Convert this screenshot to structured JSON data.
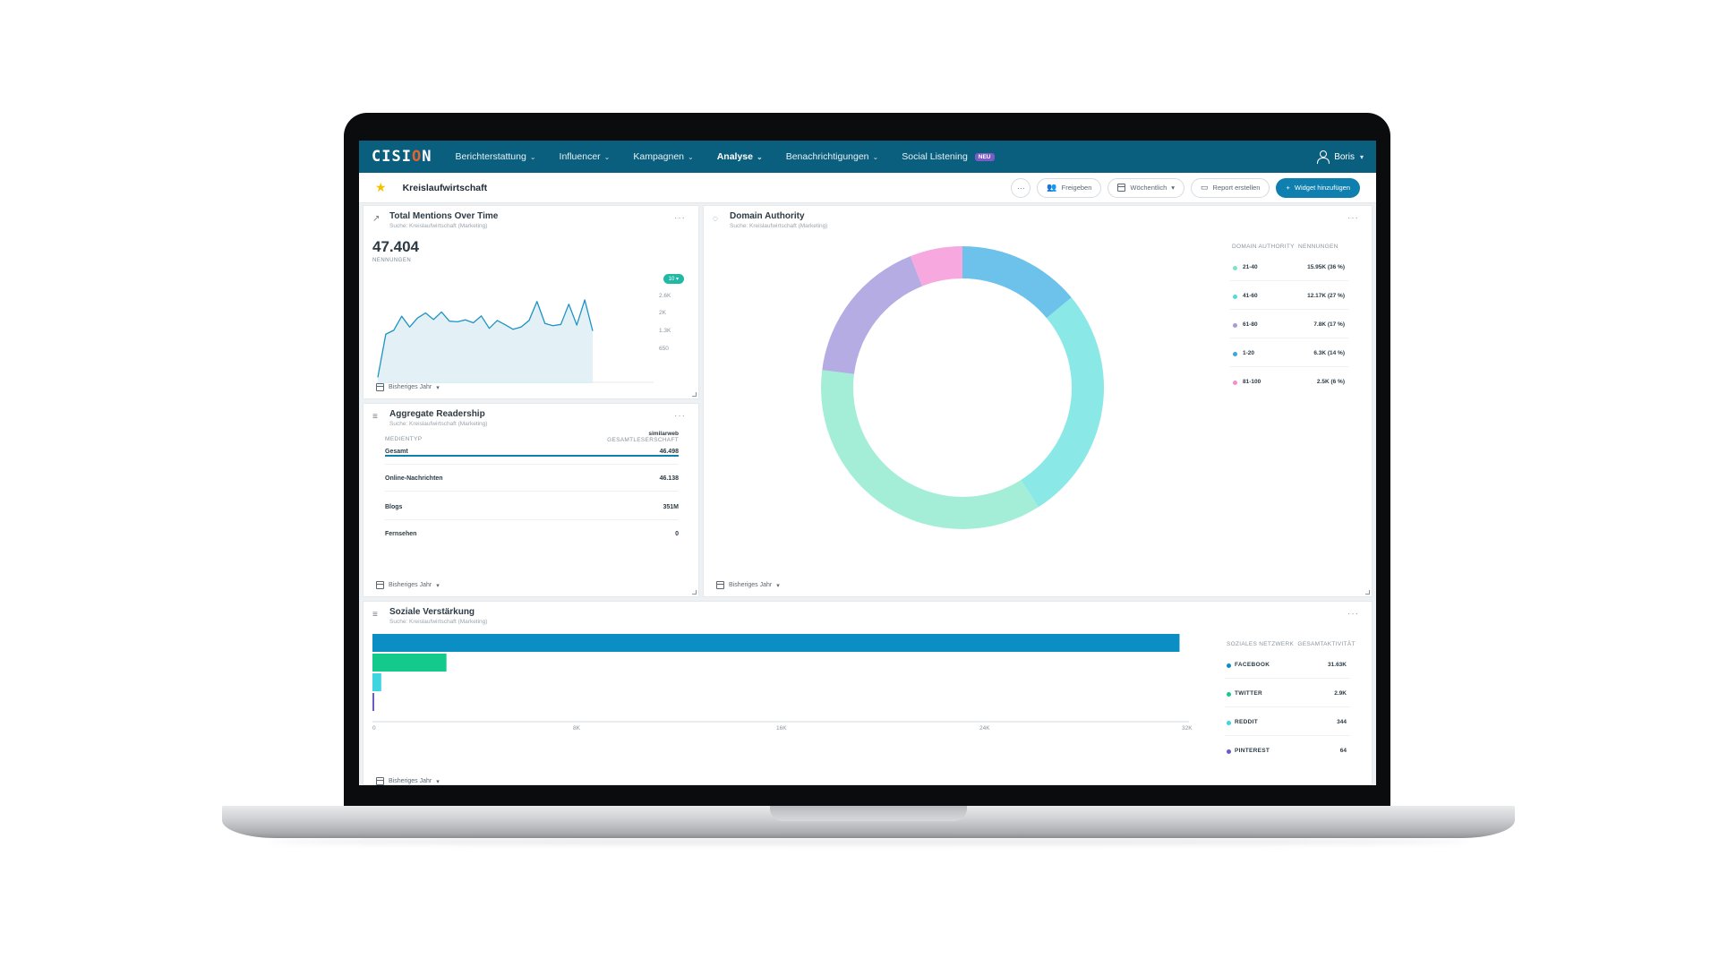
{
  "nav": {
    "logo_pre": "CISI",
    "logo_o": "O",
    "logo_post": "N",
    "items": [
      {
        "label": "Berichterstattung"
      },
      {
        "label": "Influencer"
      },
      {
        "label": "Kampagnen"
      },
      {
        "label": "Analyse"
      },
      {
        "label": "Benachrichtigungen"
      },
      {
        "label": "Social Listening"
      }
    ],
    "new_badge": "NEU",
    "user": "Boris"
  },
  "subheader": {
    "title": "Kreislaufwirtschaft",
    "more_label": "···",
    "share_label": "Freigeben",
    "period_label": "Wöchentlich",
    "report_label": "Report erstellen",
    "add_widget_label": "Widget hinzufügen"
  },
  "mentions": {
    "title": "Total Mentions Over Time",
    "subtitle": "Suche: Kreislaufwirtschaft (Marketing)",
    "total": "47.404",
    "total_label": "NENNUNGEN",
    "tag": "10 ▾",
    "y_ticks": [
      "2.6K",
      "2K",
      "1.3K",
      "650"
    ],
    "footer": "Bisheriges Jahr",
    "series": [
      180,
      1500,
      1620,
      2050,
      1720,
      2000,
      2150,
      1950,
      2180,
      1900,
      1880,
      1940,
      1850,
      2060,
      1680,
      1920,
      1790,
      1650,
      1720,
      1920,
      2500,
      1830,
      1760,
      1800,
      2420,
      1780,
      2550,
      1600
    ]
  },
  "readership": {
    "title": "Aggregate Readership",
    "subtitle": "Suche: Kreislaufwirtschaft (Marketing)",
    "col_label": "MEDIENTYP",
    "provider": "similarweb",
    "provider_sub": "GESAMTLESERSCHAFT",
    "rows": [
      {
        "label": "Gesamt",
        "value": "46.498"
      },
      {
        "label": "Online-Nachrichten",
        "value": "46.138"
      },
      {
        "label": "Blogs",
        "value": "351M"
      },
      {
        "label": "Fernsehen",
        "value": "0"
      }
    ],
    "total_fill": 1.0,
    "footer": "Bisheriges Jahr"
  },
  "domain": {
    "title": "Domain Authority",
    "subtitle": "Suche: Kreislaufwirtschaft (Marketing)",
    "col_a": "DOMAIN AUTHORITY",
    "col_b": "NENNUNGEN",
    "footer": "Bisheriges Jahr",
    "legend": [
      {
        "label": "21-40",
        "value": "15.95K (36 %)",
        "color": "#7de3c8"
      },
      {
        "label": "41-60",
        "value": "12.17K (27 %)",
        "color": "#5ad7d9"
      },
      {
        "label": "61-80",
        "value": "7.8K (17 %)",
        "color": "#a89bd9"
      },
      {
        "label": "1-20",
        "value": "6.3K (14 %)",
        "color": "#3aa8e0"
      },
      {
        "label": "81-100",
        "value": "2.5K (6 %)",
        "color": "#f28ed0"
      }
    ]
  },
  "social": {
    "title": "Soziale Verstärkung",
    "subtitle": "Suche: Kreislaufwirtschaft (Marketing)",
    "col_a": "SOZIALES NETZWERK",
    "col_b": "GESAMTAKTIVITÄT",
    "footer": "Bisheriges Jahr",
    "x_ticks": [
      "0",
      "8K",
      "16K",
      "24K",
      "32K"
    ],
    "x_max": 32000
  },
  "chart_data": [
    {
      "type": "line",
      "title": "Total Mentions Over Time",
      "yticks": [
        "2.6K",
        "2K",
        "1.3K",
        "650"
      ],
      "y": [
        180,
        1500,
        1620,
        2050,
        1720,
        2000,
        2150,
        1950,
        2180,
        1900,
        1880,
        1940,
        1850,
        2060,
        1680,
        1920,
        1790,
        1650,
        1720,
        1920,
        2500,
        1830,
        1760,
        1800,
        2420,
        1780,
        2550,
        1600
      ],
      "ylim": [
        0,
        2850
      ]
    },
    {
      "type": "pie",
      "title": "Domain Authority",
      "categories": [
        "1-20",
        "41-60",
        "21-40",
        "61-80",
        "81-100"
      ],
      "values": [
        14,
        27,
        36,
        17,
        6
      ],
      "colors": [
        "#6cc2ea",
        "#8ae8e6",
        "#a4eed8",
        "#b4ace2",
        "#f7a8de"
      ]
    },
    {
      "type": "bar",
      "title": "Soziale Verstärkung",
      "categories": [
        "FACEBOOK",
        "TWITTER",
        "REDDIT",
        "PINTEREST"
      ],
      "values": [
        31630,
        2900,
        344,
        64
      ],
      "colors": [
        "#0b8ec4",
        "#14c98c",
        "#3ed4e0",
        "#6a5cc0"
      ],
      "labels": [
        "31.63K",
        "2.9K",
        "344",
        "64"
      ],
      "xlim": [
        0,
        32000
      ]
    }
  ]
}
